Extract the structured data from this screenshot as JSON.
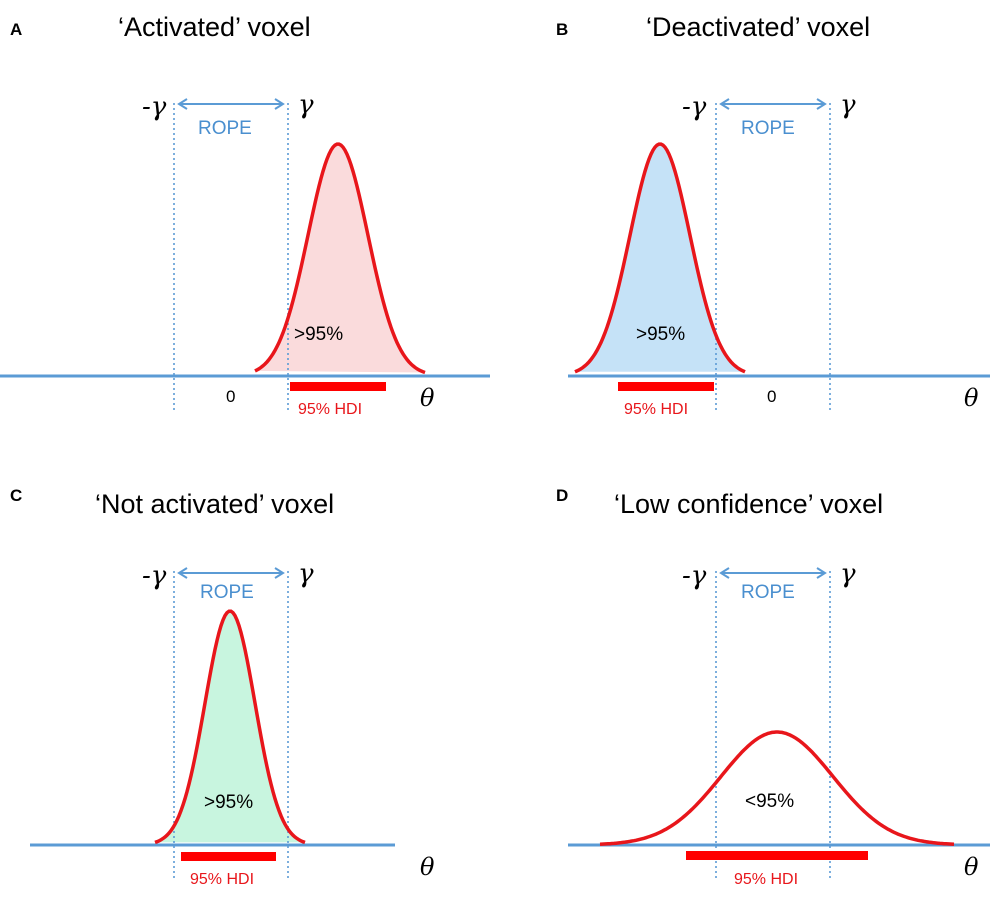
{
  "colors": {
    "axis": "#5b9bd5",
    "curve": "#e8161b",
    "rope": "#5b9bd5",
    "hdi_bar": "#ff0000",
    "fill_activated": "#fadbdc",
    "fill_deactivated": "#c5e2f7",
    "fill_not_activated": "#c8f5df"
  },
  "panels": [
    {
      "letter": "A",
      "title": "‘Activated’ voxel",
      "neg_gamma": "-γ",
      "gamma": "γ",
      "rope_label": "ROPE",
      "zero": "0",
      "percent": ">95%",
      "hdi_label": "95% HDI",
      "theta": "θ",
      "fill": "fill_activated"
    },
    {
      "letter": "B",
      "title": "‘Deactivated’ voxel",
      "neg_gamma": "-γ",
      "gamma": "γ",
      "rope_label": "ROPE",
      "zero": "0",
      "percent": ">95%",
      "hdi_label": "95% HDI",
      "theta": "θ",
      "fill": "fill_deactivated"
    },
    {
      "letter": "C",
      "title": "‘Not activated’ voxel",
      "neg_gamma": "-γ",
      "gamma": "γ",
      "rope_label": "ROPE",
      "percent": ">95%",
      "hdi_label": "95% HDI",
      "theta": "θ",
      "fill": "fill_not_activated"
    },
    {
      "letter": "D",
      "title": "‘Low confidence’ voxel",
      "neg_gamma": "-γ",
      "gamma": "γ",
      "rope_label": "ROPE",
      "percent": "<95%",
      "hdi_label": "95% HDI",
      "theta": "θ",
      "fill": "none"
    }
  ]
}
